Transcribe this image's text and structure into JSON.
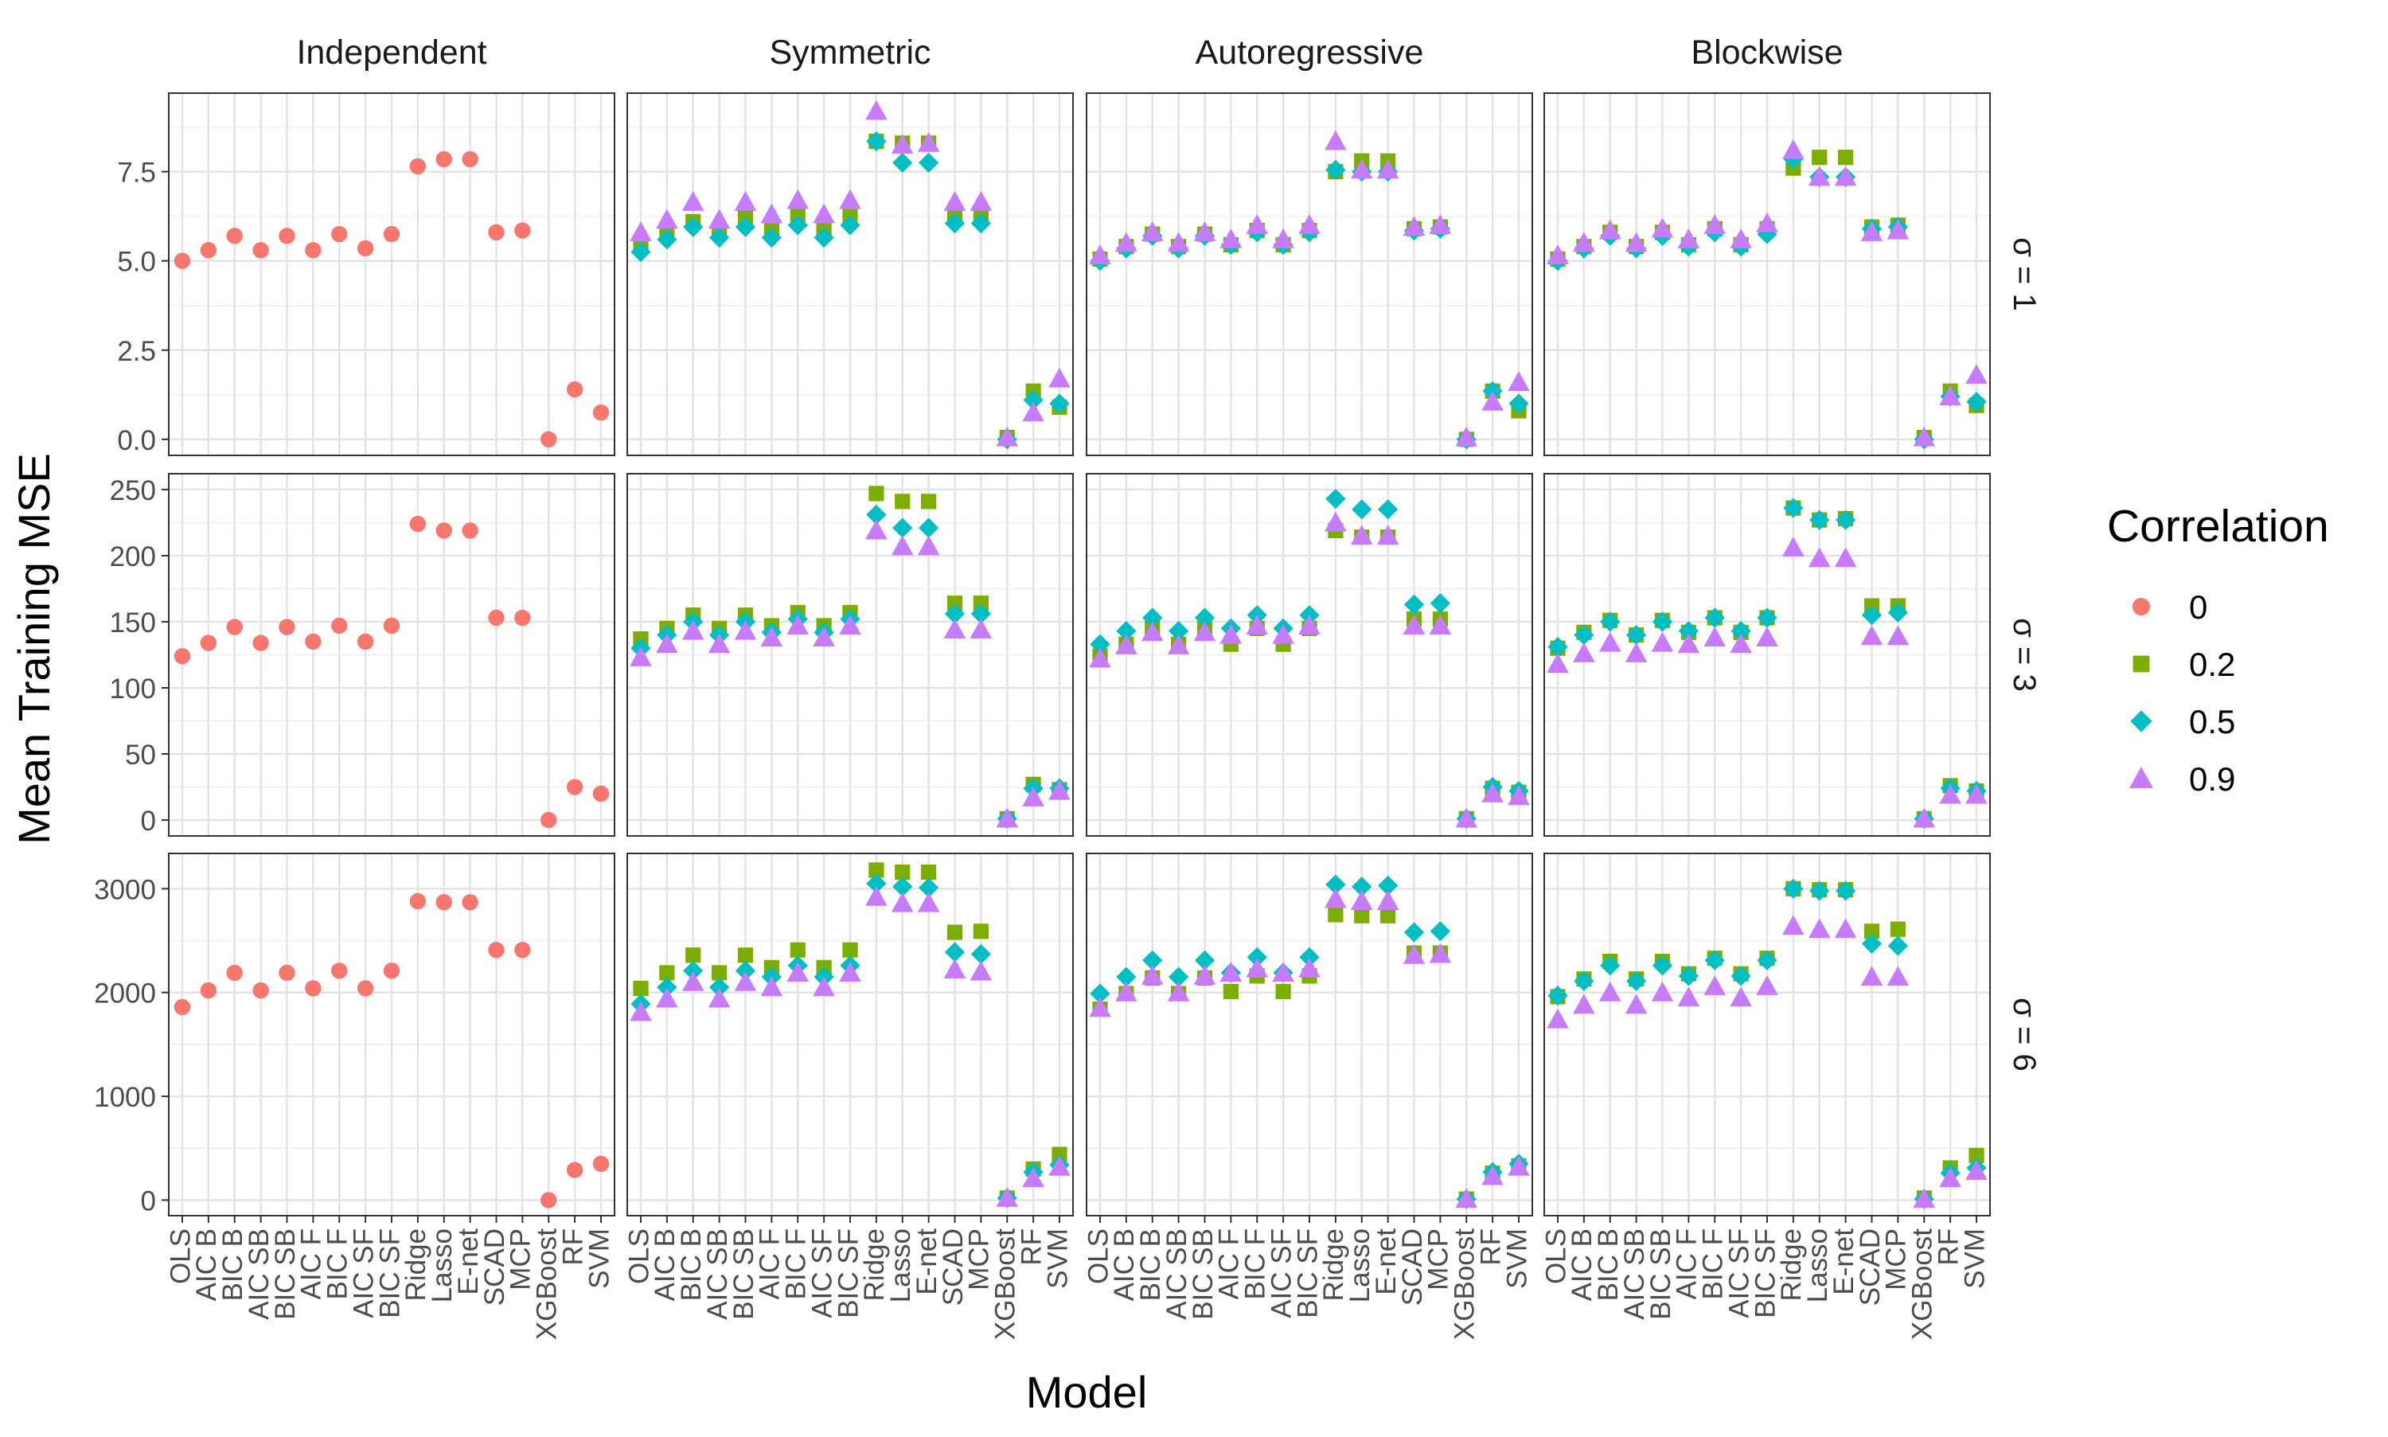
{
  "chart_data": {
    "type": "scatter",
    "xlabel": "Model",
    "ylabel": "Mean Training MSE",
    "categories": [
      "OLS",
      "AIC B",
      "BIC B",
      "AIC SB",
      "BIC SB",
      "AIC F",
      "BIC F",
      "AIC SF",
      "BIC SF",
      "Ridge",
      "Lasso",
      "E-net",
      "SCAD",
      "MCP",
      "XGBoost",
      "RF",
      "SVM"
    ],
    "columns": [
      "Independent",
      "Symmetric",
      "Autoregressive",
      "Blockwise"
    ],
    "rows": [
      "σ = 1",
      "σ = 3",
      "σ = 6"
    ],
    "row_axes": [
      {
        "ylim": [
          -0.45,
          9.7
        ],
        "ticks": [
          0,
          2.5,
          5,
          7.5
        ],
        "tick_labels": [
          "0.0",
          "2.5",
          "5.0",
          "7.5"
        ]
      },
      {
        "ylim": [
          -12,
          262
        ],
        "ticks": [
          0,
          50,
          100,
          150,
          200,
          250
        ],
        "tick_labels": [
          "0",
          "50",
          "100",
          "150",
          "200",
          "250"
        ]
      },
      {
        "ylim": [
          -150,
          3340
        ],
        "ticks": [
          0,
          1000,
          2000,
          3000
        ],
        "tick_labels": [
          "0",
          "1000",
          "2000",
          "3000"
        ]
      }
    ],
    "grid": true,
    "legend": {
      "title": "Correlation",
      "position": "right",
      "entries": [
        {
          "label": "0",
          "shape": "circle",
          "color": "#F8766D"
        },
        {
          "label": "0.2",
          "shape": "square",
          "color": "#7CAE00"
        },
        {
          "label": "0.5",
          "shape": "diamond",
          "color": "#00BFC4"
        },
        {
          "label": "0.9",
          "shape": "triangle",
          "color": "#C77CFF"
        }
      ]
    },
    "panels": [
      [
        {
          "series": [
            {
              "name": "0",
              "values": [
                5.0,
                5.3,
                5.7,
                5.3,
                5.7,
                5.3,
                5.75,
                5.35,
                5.75,
                7.65,
                7.85,
                7.85,
                5.8,
                5.85,
                0.0,
                1.4,
                0.75
              ]
            }
          ]
        },
        {
          "series": [
            {
              "name": "0.2",
              "values": [
                5.5,
                5.75,
                6.1,
                5.8,
                6.2,
                5.85,
                6.3,
                5.85,
                6.3,
                8.35,
                8.3,
                8.3,
                6.3,
                6.3,
                0.05,
                1.35,
                0.9
              ]
            },
            {
              "name": "0.5",
              "values": [
                5.25,
                5.6,
                5.95,
                5.65,
                5.95,
                5.65,
                6.0,
                5.65,
                6.0,
                8.35,
                7.75,
                7.75,
                6.05,
                6.05,
                0.0,
                1.1,
                1.0
              ]
            },
            {
              "name": "0.9",
              "values": [
                5.8,
                6.15,
                6.65,
                6.15,
                6.65,
                6.3,
                6.7,
                6.3,
                6.7,
                9.2,
                8.25,
                8.3,
                6.65,
                6.65,
                0.05,
                0.75,
                1.7
              ]
            }
          ]
        },
        {
          "series": [
            {
              "name": "0.2",
              "values": [
                5.05,
                5.4,
                5.75,
                5.4,
                5.75,
                5.45,
                5.85,
                5.45,
                5.85,
                7.5,
                7.8,
                7.8,
                5.9,
                5.95,
                0.0,
                1.35,
                0.8
              ]
            },
            {
              "name": "0.5",
              "values": [
                5.0,
                5.35,
                5.7,
                5.35,
                5.7,
                5.45,
                5.8,
                5.45,
                5.8,
                7.55,
                7.5,
                7.5,
                5.85,
                5.9,
                0.0,
                1.35,
                1.0
              ]
            },
            {
              "name": "0.9",
              "values": [
                5.15,
                5.5,
                5.8,
                5.5,
                5.8,
                5.6,
                6.0,
                5.6,
                6.0,
                8.35,
                7.55,
                7.55,
                5.95,
                6.0,
                0.05,
                1.05,
                1.6
              ]
            }
          ]
        },
        {
          "series": [
            {
              "name": "0.2",
              "values": [
                5.05,
                5.4,
                5.8,
                5.4,
                5.8,
                5.45,
                5.9,
                5.45,
                5.9,
                7.6,
                7.9,
                7.9,
                5.95,
                6.0,
                0.05,
                1.35,
                0.95
              ]
            },
            {
              "name": "0.5",
              "values": [
                5.0,
                5.35,
                5.7,
                5.35,
                5.7,
                5.4,
                5.8,
                5.4,
                5.75,
                7.85,
                7.35,
                7.35,
                5.9,
                5.95,
                0.0,
                1.2,
                1.05
              ]
            },
            {
              "name": "0.9",
              "values": [
                5.15,
                5.5,
                5.85,
                5.5,
                5.9,
                5.6,
                6.0,
                5.6,
                6.05,
                8.1,
                7.35,
                7.35,
                5.8,
                5.85,
                0.05,
                1.2,
                1.8
              ]
            }
          ]
        }
      ],
      [
        {
          "series": [
            {
              "name": "0",
              "values": [
                124,
                134,
                146,
                134,
                146,
                135,
                147,
                135,
                147,
                224,
                219,
                219,
                153,
                153,
                0,
                25,
                20
              ]
            }
          ]
        },
        {
          "series": [
            {
              "name": "0.2",
              "values": [
                137,
                145,
                155,
                145,
                155,
                147,
                157,
                147,
                157,
                247,
                241,
                241,
                164,
                164,
                1,
                27,
                23
              ]
            },
            {
              "name": "0.5",
              "values": [
                130,
                140,
                150,
                140,
                150,
                142,
                152,
                142,
                152,
                231,
                221,
                221,
                156,
                156,
                1,
                24,
                24
              ]
            },
            {
              "name": "0.9",
              "values": [
                123,
                133,
                143,
                133,
                143,
                138,
                147,
                138,
                147,
                219,
                207,
                207,
                144,
                144,
                1,
                17,
                22
              ]
            }
          ]
        },
        {
          "series": [
            {
              "name": "0.2",
              "values": [
                124,
                133,
                145,
                133,
                145,
                133,
                145,
                133,
                145,
                219,
                214,
                214,
                152,
                152,
                1,
                24,
                21
              ]
            },
            {
              "name": "0.5",
              "values": [
                133,
                143,
                153,
                143,
                153,
                145,
                155,
                145,
                155,
                243,
                235,
                235,
                163,
                164,
                1,
                25,
                22
              ]
            },
            {
              "name": "0.9",
              "values": [
                122,
                132,
                142,
                132,
                142,
                140,
                147,
                140,
                147,
                225,
                215,
                215,
                147,
                147,
                1,
                20,
                18
              ]
            }
          ]
        },
        {
          "series": [
            {
              "name": "0.2",
              "values": [
                130,
                142,
                151,
                140,
                151,
                142,
                153,
                142,
                153,
                236,
                227,
                228,
                162,
                162,
                1,
                26,
                22
              ]
            },
            {
              "name": "0.5",
              "values": [
                131,
                140,
                150,
                140,
                150,
                143,
                153,
                143,
                153,
                236,
                227,
                227,
                155,
                157,
                1,
                24,
                22
              ]
            },
            {
              "name": "0.9",
              "values": [
                118,
                126,
                134,
                126,
                134,
                133,
                138,
                133,
                138,
                206,
                198,
                198,
                139,
                139,
                1,
                19,
                19
              ]
            }
          ]
        }
      ],
      [
        {
          "series": [
            {
              "name": "0",
              "values": [
                1860,
                2020,
                2190,
                2020,
                2190,
                2040,
                2210,
                2040,
                2210,
                2880,
                2870,
                2870,
                2410,
                2410,
                0,
                290,
                350
              ]
            }
          ]
        },
        {
          "series": [
            {
              "name": "0.2",
              "values": [
                2040,
                2190,
                2360,
                2190,
                2360,
                2240,
                2410,
                2240,
                2410,
                3180,
                3160,
                3160,
                2580,
                2590,
                20,
                300,
                440
              ]
            },
            {
              "name": "0.5",
              "values": [
                1890,
                2050,
                2210,
                2050,
                2210,
                2150,
                2260,
                2150,
                2260,
                3050,
                3020,
                3010,
                2390,
                2370,
                20,
                270,
                340
              ]
            },
            {
              "name": "0.9",
              "values": [
                1810,
                1940,
                2100,
                1940,
                2100,
                2050,
                2190,
                2050,
                2190,
                2920,
                2860,
                2860,
                2220,
                2200,
                20,
                210,
                320
              ]
            }
          ]
        },
        {
          "series": [
            {
              "name": "0.2",
              "values": [
                1840,
                1990,
                2140,
                1990,
                2140,
                2010,
                2160,
                2010,
                2160,
                2750,
                2740,
                2740,
                2380,
                2380,
                10,
                260,
                330
              ]
            },
            {
              "name": "0.5",
              "values": [
                1990,
                2150,
                2310,
                2150,
                2310,
                2190,
                2340,
                2190,
                2340,
                3040,
                3020,
                3030,
                2580,
                2590,
                10,
                270,
                350
              ]
            },
            {
              "name": "0.9",
              "values": [
                1850,
                2000,
                2160,
                2000,
                2160,
                2190,
                2230,
                2190,
                2230,
                2900,
                2880,
                2880,
                2360,
                2370,
                10,
                230,
                320
              ]
            }
          ]
        },
        {
          "series": [
            {
              "name": "0.2",
              "values": [
                1960,
                2130,
                2300,
                2130,
                2300,
                2180,
                2330,
                2180,
                2330,
                3000,
                2990,
                2990,
                2590,
                2610,
                20,
                310,
                430
              ]
            },
            {
              "name": "0.5",
              "values": [
                1970,
                2110,
                2260,
                2110,
                2260,
                2160,
                2310,
                2160,
                2310,
                3000,
                2980,
                2980,
                2470,
                2450,
                10,
                260,
                310
              ]
            },
            {
              "name": "0.9",
              "values": [
                1740,
                1880,
                2000,
                1880,
                2000,
                1950,
                2060,
                1950,
                2060,
                2640,
                2610,
                2610,
                2150,
                2150,
                10,
                210,
                280
              ]
            }
          ]
        }
      ]
    ]
  }
}
